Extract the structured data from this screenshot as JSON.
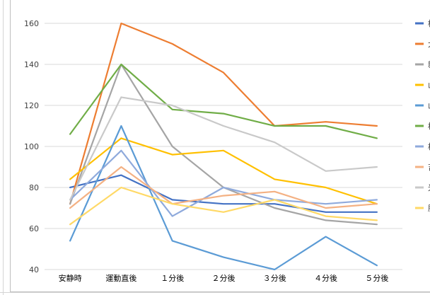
{
  "chart_data": {
    "type": "line",
    "title": "",
    "xlabel": "",
    "ylabel": "",
    "categories": [
      "安静時",
      "運動直後",
      "１分後",
      "２分後",
      "３分後",
      "４分後",
      "５分後"
    ],
    "ylim": [
      40,
      160
    ],
    "yticks": [
      40,
      60,
      80,
      100,
      120,
      140,
      160
    ],
    "grid": "horizontal",
    "legend_position": "right",
    "series": [
      {
        "name": "柿",
        "color": "#4472c4",
        "values": [
          80,
          86,
          74,
          72,
          72,
          68,
          68
        ]
      },
      {
        "name": "大",
        "color": "#ed7d31",
        "values": [
          72,
          160,
          150,
          136,
          110,
          112,
          110
        ]
      },
      {
        "name": "新",
        "color": "#a5a5a5",
        "values": [
          72,
          140,
          100,
          80,
          70,
          64,
          62
        ]
      },
      {
        "name": "山",
        "color": "#ffc000",
        "values": [
          84,
          104,
          96,
          98,
          84,
          80,
          72
        ]
      },
      {
        "name": "山",
        "color": "#5b9bd5",
        "values": [
          54,
          110,
          54,
          46,
          40,
          56,
          42
        ]
      },
      {
        "name": "松",
        "color": "#70ad47",
        "values": [
          106,
          140,
          118,
          116,
          110,
          110,
          104
        ]
      },
      {
        "name": "松",
        "color": "#8faadc",
        "values": [
          74,
          98,
          66,
          80,
          74,
          72,
          74
        ]
      },
      {
        "name": "吉",
        "color": "#f4b183",
        "values": [
          70,
          90,
          72,
          76,
          78,
          70,
          72
        ]
      },
      {
        "name": "光",
        "color": "#c9c9c9",
        "values": [
          74,
          124,
          120,
          110,
          102,
          88,
          90
        ]
      },
      {
        "name": "服",
        "color": "#ffd966",
        "values": [
          62,
          80,
          72,
          68,
          74,
          66,
          64
        ]
      }
    ]
  }
}
